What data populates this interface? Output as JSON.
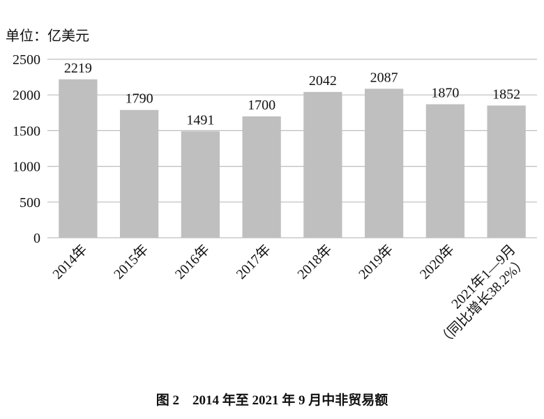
{
  "chart_data": {
    "type": "bar",
    "unit_label": "单位：亿美元",
    "caption": "图 2　2014 年至 2021 年 9 月中非贸易额",
    "categories": [
      "2014年",
      "2015年",
      "2016年",
      "2017年",
      "2018年",
      "2019年",
      "2020年",
      [
        "2021年1—9月",
        "（同比增长38.2%）"
      ]
    ],
    "values": [
      2219,
      1790,
      1491,
      1700,
      2042,
      2087,
      1870,
      1852
    ],
    "color": "#bfbfbf",
    "ylim": [
      0,
      2500
    ],
    "yticks": [
      0,
      500,
      1000,
      1500,
      2000,
      2500
    ],
    "grid": true
  }
}
